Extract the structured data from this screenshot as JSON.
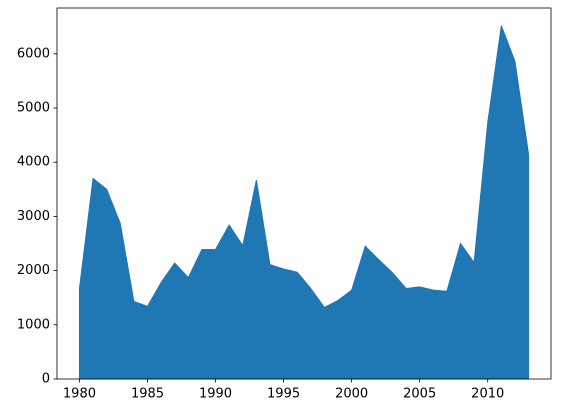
{
  "chart_data": {
    "type": "area",
    "color": "#1f77b4",
    "x": [
      1980,
      1981,
      1982,
      1983,
      1984,
      1985,
      1986,
      1987,
      1988,
      1989,
      1990,
      1991,
      1992,
      1993,
      1994,
      1995,
      1996,
      1997,
      1998,
      1999,
      2000,
      2001,
      2002,
      2003,
      2004,
      2005,
      2006,
      2007,
      2008,
      2009,
      2010,
      2011,
      2012,
      2013
    ],
    "values": [
      1670,
      3700,
      3500,
      2870,
      1430,
      1340,
      1780,
      2140,
      1870,
      2390,
      2390,
      2840,
      2460,
      3670,
      2110,
      2030,
      1970,
      1670,
      1320,
      1450,
      1640,
      2450,
      2200,
      1960,
      1670,
      1700,
      1640,
      1620,
      2500,
      2150,
      4730,
      6520,
      5860,
      4150
    ],
    "xlim": [
      1978.35,
      2014.65
    ],
    "xticks": [
      1980,
      1985,
      1990,
      1995,
      2000,
      2005,
      2010
    ],
    "ylim": [
      0,
      6846
    ],
    "yticks": [
      0,
      1000,
      2000,
      3000,
      4000,
      5000,
      6000
    ]
  }
}
